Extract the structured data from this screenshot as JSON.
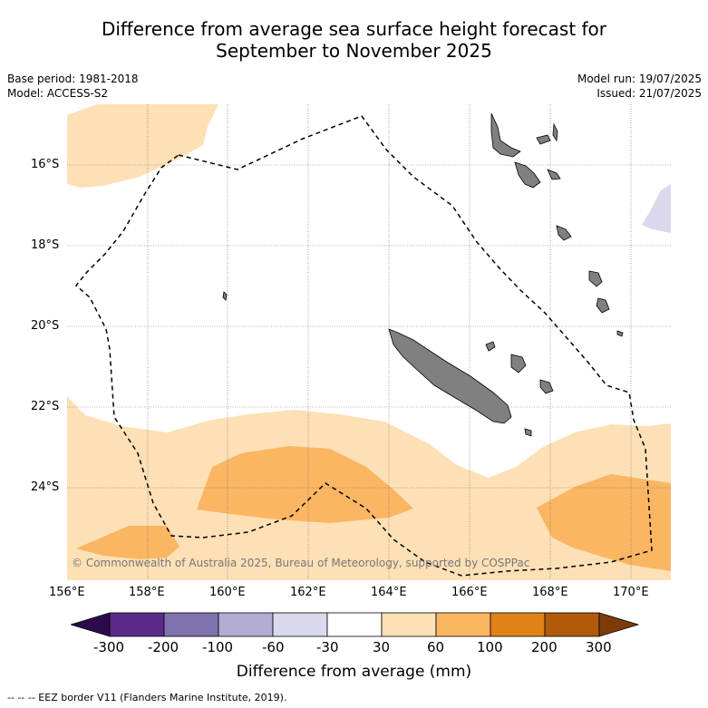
{
  "title": {
    "line1": "Difference from average sea surface height forecast for",
    "line2": "September to November 2025"
  },
  "meta": {
    "base_period": "Base period: 1981-2018",
    "model": "Model: ACCESS-S2",
    "model_run": "Model run: 19/07/2025",
    "issued": "Issued: 21/07/2025"
  },
  "map": {
    "lat_labels": [
      "16°S",
      "18°S",
      "20°S",
      "22°S",
      "24°S"
    ],
    "lon_labels": [
      "156°E",
      "158°E",
      "160°E",
      "162°E",
      "164°E",
      "166°E",
      "168°E",
      "170°E"
    ],
    "copyright": "© Commonwealth of Australia 2025, Bureau of Meteorology, supported by COSPPac",
    "land_color": "#808080"
  },
  "colorbar": {
    "title": "Difference from average (mm)",
    "tick_labels": [
      "-300",
      "-200",
      "-100",
      "-60",
      "-30",
      "30",
      "60",
      "100",
      "200",
      "300"
    ],
    "colors": [
      "#2d0a4e",
      "#5a2a8a",
      "#8072ae",
      "#b3acd3",
      "#d8d9ec",
      "#ffffff",
      "#fde0b6",
      "#fbb663",
      "#e08218",
      "#b05a0a",
      "#7e3b08"
    ]
  },
  "footnote": "--  --  -- EEZ border V11 (Flanders Marine Institute, 2019)."
}
